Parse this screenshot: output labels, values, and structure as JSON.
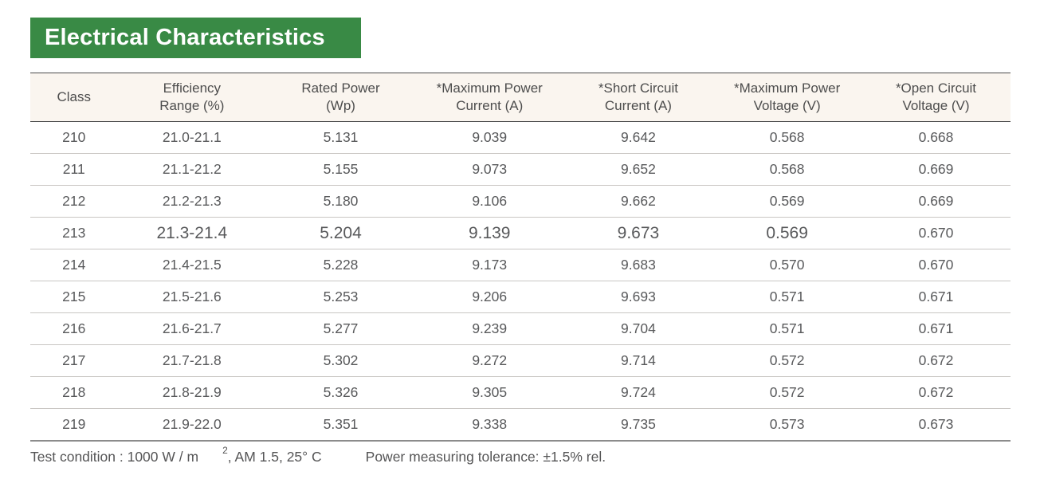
{
  "banner": {
    "title": "Electrical Characteristics"
  },
  "colors": {
    "banner_green": "#398a45",
    "header_bg": "#faf5ef",
    "header_text": "#4d4d4d",
    "body_text": "#58595b",
    "dark_rule": "#4a4a4a",
    "light_rule": "#c9c6c3",
    "bottom_rule": "#8c8c8c"
  },
  "table": {
    "columns": [
      "Class",
      "Efficiency\nRange (%)",
      "Rated Power\n(Wp)",
      "*Maximum Power\nCurrent (A)",
      "*Short Circuit\nCurrent (A)",
      "*Maximum Power\nVoltage (V)",
      "*Open Circuit\nVoltage (V)"
    ],
    "rows": [
      [
        "210",
        "21.0-21.1",
        "5.131",
        "9.039",
        "9.642",
        "0.568",
        "0.668"
      ],
      [
        "211",
        "21.1-21.2",
        "5.155",
        "9.073",
        "9.652",
        "0.568",
        "0.669"
      ],
      [
        "212",
        "21.2-21.3",
        "5.180",
        "9.106",
        "9.662",
        "0.569",
        "0.669"
      ],
      [
        "213",
        "21.3-21.4",
        "5.204",
        "9.139",
        "9.673",
        "0.569",
        "0.670"
      ],
      [
        "214",
        "21.4-21.5",
        "5.228",
        "9.173",
        "9.683",
        "0.570",
        "0.670"
      ],
      [
        "215",
        "21.5-21.6",
        "5.253",
        "9.206",
        "9.693",
        "0.571",
        "0.671"
      ],
      [
        "216",
        "21.6-21.7",
        "5.277",
        "9.239",
        "9.704",
        "0.571",
        "0.671"
      ],
      [
        "217",
        "21.7-21.8",
        "5.302",
        "9.272",
        "9.714",
        "0.572",
        "0.672"
      ],
      [
        "218",
        "21.8-21.9",
        "5.326",
        "9.305",
        "9.724",
        "0.572",
        "0.672"
      ],
      [
        "219",
        "21.9-22.0",
        "5.351",
        "9.338",
        "9.735",
        "0.573",
        "0.673"
      ]
    ],
    "emphasis": {
      "row_class": "213",
      "cell_indexes": [
        1,
        2,
        3,
        4,
        5
      ]
    }
  },
  "footer": {
    "test_condition_prefix": "Test condition : 1000 W / m",
    "test_condition_sup": "2",
    "test_condition_suffix": ", AM 1.5, 25° C",
    "tolerance": "Power measuring tolerance: ±1.5% rel."
  }
}
